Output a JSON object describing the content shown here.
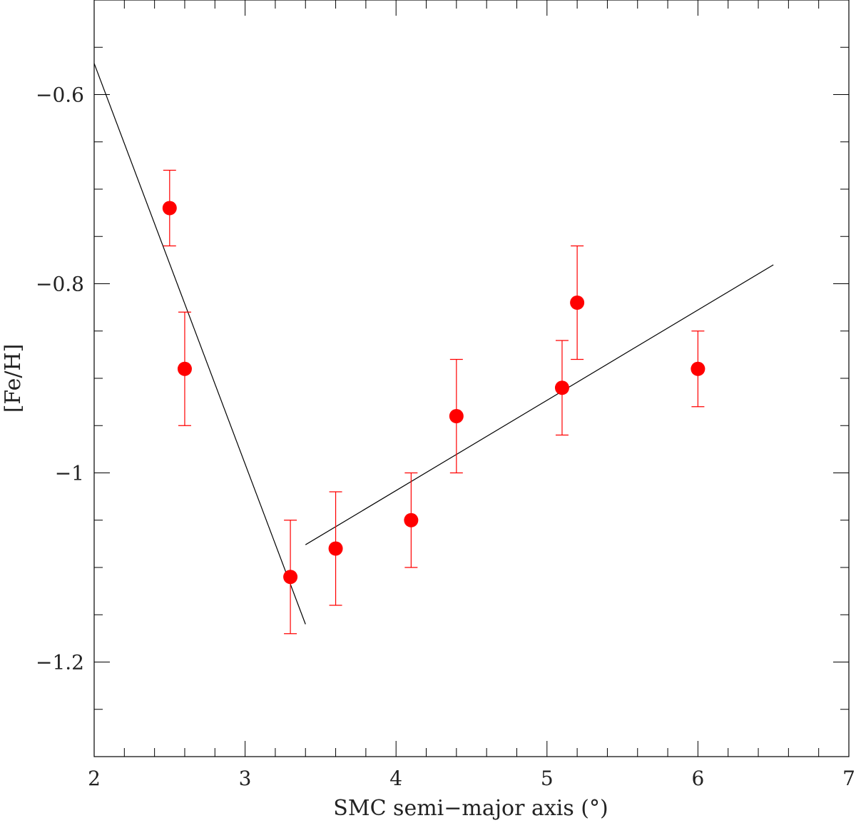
{
  "chart_data": {
    "type": "scatter",
    "xlabel": "SMC semi−major axis (°)",
    "ylabel": "[Fe/H]",
    "xlim": [
      2,
      7
    ],
    "ylim": [
      -1.3,
      -0.5
    ],
    "x_ticks": [
      2,
      3,
      4,
      5,
      6,
      7
    ],
    "x_tick_labels": [
      "2",
      "3",
      "4",
      "5",
      "6",
      "7"
    ],
    "x_minor_step": 0.2,
    "y_ticks": [
      -1.2,
      -1.0,
      -0.8,
      -0.6
    ],
    "y_tick_labels": [
      "−1.2",
      "−1",
      "−0.8",
      "−0.6"
    ],
    "y_minor_step": 0.05,
    "grid": false,
    "marker_color": "#ff0000",
    "errorbar_color": "#ff0000",
    "fit_line_color": "#000000",
    "series": [
      {
        "points": [
          {
            "x": 2.5,
            "y": -0.72,
            "yerr": 0.04
          },
          {
            "x": 2.6,
            "y": -0.89,
            "yerr": 0.06
          },
          {
            "x": 3.3,
            "y": -1.11,
            "yerr": 0.06
          },
          {
            "x": 3.6,
            "y": -1.08,
            "yerr": 0.06
          },
          {
            "x": 4.1,
            "y": -1.05,
            "yerr": 0.05
          },
          {
            "x": 4.4,
            "y": -0.94,
            "yerr": 0.06
          },
          {
            "x": 5.1,
            "y": -0.91,
            "yerr": 0.05
          },
          {
            "x": 5.2,
            "y": -0.82,
            "yerr": 0.06
          },
          {
            "x": 6.0,
            "y": -0.89,
            "yerr": 0.04
          }
        ]
      }
    ],
    "fit_lines": [
      {
        "x": [
          2.0,
          3.4
        ],
        "y": [
          -0.567,
          -1.16
        ]
      },
      {
        "x": [
          3.4,
          6.5
        ],
        "y": [
          -1.076,
          -0.78
        ]
      }
    ]
  }
}
